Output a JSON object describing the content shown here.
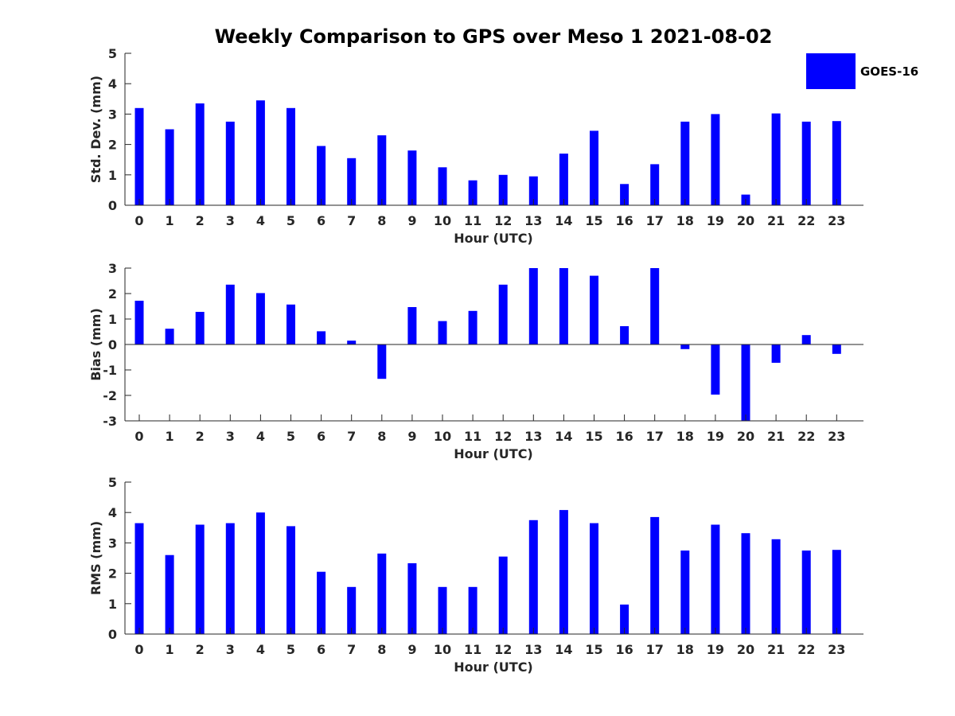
{
  "title": "Weekly Comparison to GPS over Meso 1 2021-08-02",
  "legend": {
    "label": "GOES-16",
    "color": "#0000ff"
  },
  "chart_data": [
    {
      "type": "bar",
      "name": "std-dev",
      "xlabel": "Hour (UTC)",
      "ylabel": "Std. Dev. (mm)",
      "categories": [
        "0",
        "1",
        "2",
        "3",
        "4",
        "5",
        "6",
        "7",
        "8",
        "9",
        "10",
        "11",
        "12",
        "13",
        "14",
        "15",
        "16",
        "17",
        "18",
        "19",
        "20",
        "21",
        "22",
        "23"
      ],
      "series": [
        {
          "name": "GOES-16",
          "values": [
            3.2,
            2.5,
            3.35,
            2.75,
            3.45,
            3.2,
            1.95,
            1.55,
            2.3,
            1.8,
            1.25,
            0.82,
            1.0,
            0.95,
            1.7,
            2.45,
            0.7,
            1.35,
            2.75,
            3.0,
            0.35,
            3.02,
            2.75,
            2.77
          ]
        }
      ],
      "ylim": [
        0,
        5
      ],
      "yticks": [
        "0",
        "1",
        "2",
        "3",
        "4",
        "5"
      ]
    },
    {
      "type": "bar",
      "name": "bias",
      "xlabel": "Hour (UTC)",
      "ylabel": "Bias (mm)",
      "categories": [
        "0",
        "1",
        "2",
        "3",
        "4",
        "5",
        "6",
        "7",
        "8",
        "9",
        "10",
        "11",
        "12",
        "13",
        "14",
        "15",
        "16",
        "17",
        "18",
        "19",
        "20",
        "21",
        "22",
        "23"
      ],
      "series": [
        {
          "name": "GOES-16",
          "values": [
            1.72,
            0.62,
            1.28,
            2.35,
            2.02,
            1.57,
            0.52,
            0.15,
            -1.35,
            1.47,
            0.92,
            1.32,
            2.35,
            3.0,
            3.0,
            2.7,
            0.72,
            3.0,
            -0.18,
            -1.97,
            -3.0,
            -0.72,
            0.37,
            -0.37
          ]
        }
      ],
      "ylim": [
        -3,
        3
      ],
      "yticks": [
        "-3",
        "-2",
        "-1",
        "0",
        "1",
        "2",
        "3"
      ]
    },
    {
      "type": "bar",
      "name": "rms",
      "xlabel": "Hour (UTC)",
      "ylabel": "RMS (mm)",
      "categories": [
        "0",
        "1",
        "2",
        "3",
        "4",
        "5",
        "6",
        "7",
        "8",
        "9",
        "10",
        "11",
        "12",
        "13",
        "14",
        "15",
        "16",
        "17",
        "18",
        "19",
        "20",
        "21",
        "22",
        "23"
      ],
      "series": [
        {
          "name": "GOES-16",
          "values": [
            3.65,
            2.6,
            3.6,
            3.65,
            4.0,
            3.55,
            2.05,
            1.55,
            2.65,
            2.33,
            1.55,
            1.55,
            2.55,
            3.75,
            4.08,
            3.65,
            0.97,
            3.85,
            2.75,
            3.6,
            3.32,
            3.12,
            2.75,
            2.77
          ]
        }
      ],
      "ylim": [
        0,
        5
      ],
      "yticks": [
        "0",
        "1",
        "2",
        "3",
        "4",
        "5"
      ]
    }
  ]
}
